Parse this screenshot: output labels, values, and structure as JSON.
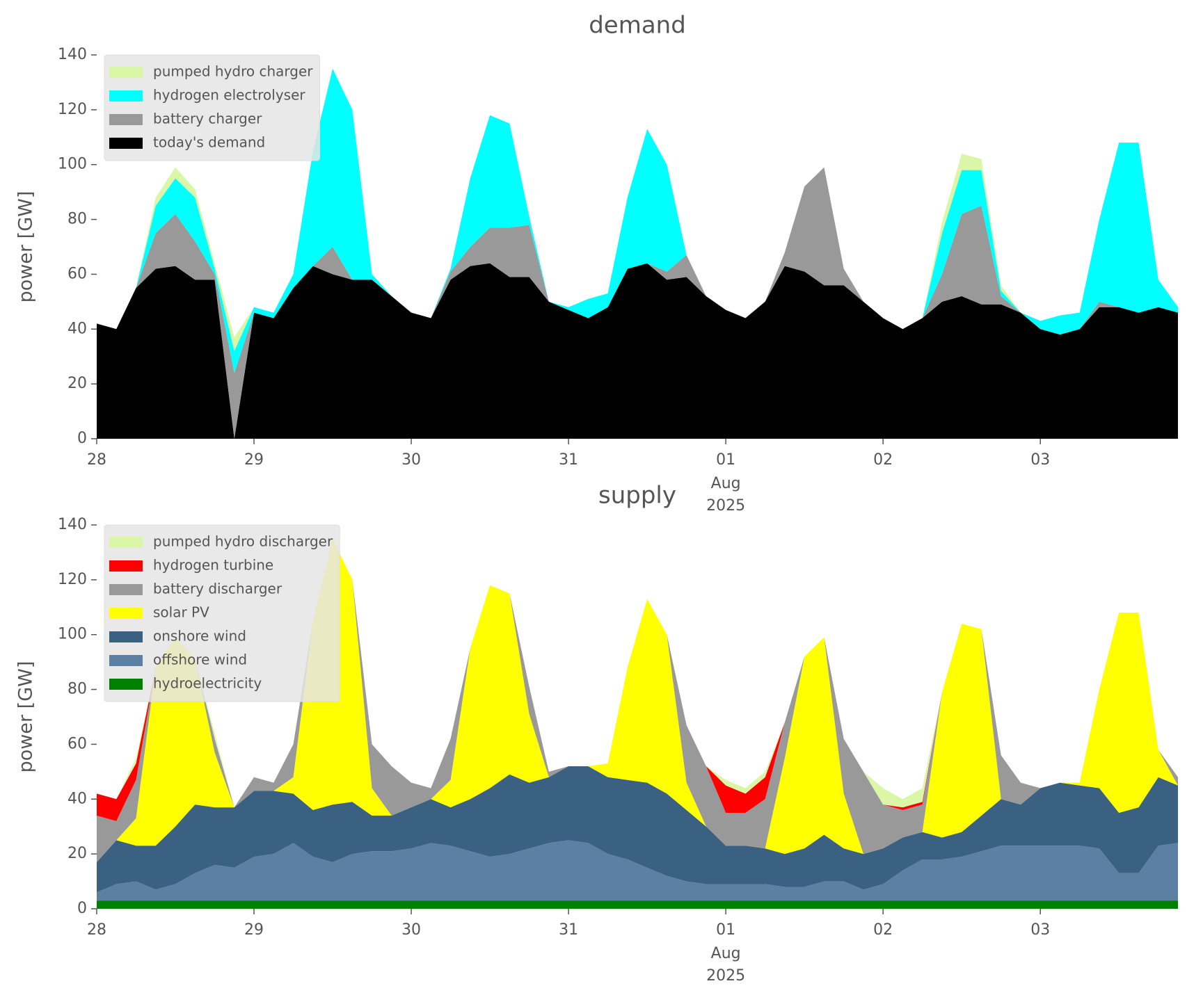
{
  "chart_data": [
    {
      "type": "stacked-area",
      "title": "demand",
      "ylabel": "power [GW]",
      "legend": "upper left",
      "grid": false,
      "x": [
        0,
        0.125,
        0.25,
        0.375,
        0.5,
        0.625,
        0.75,
        0.875,
        1,
        1.125,
        1.25,
        1.375,
        1.5,
        1.625,
        1.75,
        1.875,
        2,
        2.125,
        2.25,
        2.375,
        2.5,
        2.625,
        2.75,
        2.875,
        3,
        3.125,
        3.25,
        3.375,
        3.5,
        3.625,
        3.75,
        3.875,
        4,
        4.125,
        4.25,
        4.375,
        4.5,
        4.625,
        4.75,
        4.875,
        5,
        5.125,
        5.25,
        5.375,
        5.5,
        5.625,
        5.75,
        5.875,
        6,
        6.125,
        6.25,
        6.375,
        6.5,
        6.625,
        6.75,
        6.875
      ],
      "xlim": [
        0,
        6.875
      ],
      "xticks": [
        {
          "value": 0,
          "label": "28"
        },
        {
          "value": 1,
          "label": "29"
        },
        {
          "value": 2,
          "label": "30"
        },
        {
          "value": 3,
          "label": "31"
        },
        {
          "value": 4,
          "label": "01"
        },
        {
          "value": 5,
          "label": "02"
        },
        {
          "value": 6,
          "label": "03"
        }
      ],
      "x_sublabel": [
        "Aug",
        "2025"
      ],
      "ylim": [
        0,
        140
      ],
      "yticks": [
        0,
        20,
        40,
        60,
        80,
        100,
        120,
        140
      ],
      "series": [
        {
          "name": "pumped hydro charger",
          "color": "#d9f7a7",
          "values": [
            0,
            0,
            0,
            3,
            4,
            3,
            2,
            5,
            0,
            0,
            0,
            0,
            0,
            0,
            0,
            0,
            0,
            0,
            0,
            0,
            0,
            0,
            0,
            0,
            0,
            0,
            0,
            0,
            0,
            0,
            0,
            0,
            0,
            0,
            0,
            0,
            0,
            0,
            0,
            0,
            0,
            0,
            0,
            4,
            6,
            4,
            2,
            0,
            0,
            0,
            0,
            0,
            0,
            0,
            0,
            0
          ]
        },
        {
          "name": "hydrogen electrolyser",
          "color": "#00ffff",
          "values": [
            0,
            0,
            0,
            10,
            13,
            16,
            2,
            8,
            2,
            2,
            5,
            42,
            65,
            62,
            2,
            0,
            0,
            0,
            1,
            25,
            41,
            38,
            3,
            0,
            1,
            7,
            5,
            26,
            49,
            39,
            0,
            0,
            0,
            0,
            0,
            0,
            0,
            0,
            0,
            0,
            0,
            0,
            0,
            15,
            16,
            13,
            2,
            0,
            3,
            7,
            6,
            30,
            60,
            62,
            10,
            2
          ]
        },
        {
          "name": "battery charger",
          "color": "#999999",
          "values": [
            0,
            0,
            0,
            13,
            19,
            14,
            2,
            24,
            0,
            0,
            0,
            0,
            10,
            0,
            0,
            0,
            0,
            0,
            3,
            7,
            13,
            18,
            19,
            0,
            0,
            0,
            0,
            0,
            0,
            3,
            8,
            0,
            0,
            0,
            0,
            5,
            31,
            43,
            6,
            0,
            0,
            0,
            0,
            10,
            30,
            36,
            3,
            0,
            0,
            0,
            0,
            2,
            0,
            0,
            0,
            0
          ]
        },
        {
          "name": "today's demand",
          "color": "#000000",
          "values": [
            42,
            40,
            55,
            62,
            63,
            58,
            58,
            0,
            46,
            44,
            55,
            63,
            60,
            58,
            58,
            52,
            46,
            44,
            58,
            63,
            64,
            59,
            59,
            50,
            47,
            44,
            48,
            62,
            64,
            58,
            59,
            52,
            47,
            44,
            50,
            63,
            61,
            56,
            56,
            50,
            44,
            40,
            44,
            50,
            52,
            49,
            49,
            46,
            40,
            38,
            40,
            48,
            48,
            46,
            48,
            46
          ]
        }
      ]
    },
    {
      "type": "stacked-area",
      "title": "supply",
      "ylabel": "power [GW]",
      "legend": "upper left",
      "grid": false,
      "x": [
        0,
        0.125,
        0.25,
        0.375,
        0.5,
        0.625,
        0.75,
        0.875,
        1,
        1.125,
        1.25,
        1.375,
        1.5,
        1.625,
        1.75,
        1.875,
        2,
        2.125,
        2.25,
        2.375,
        2.5,
        2.625,
        2.75,
        2.875,
        3,
        3.125,
        3.25,
        3.375,
        3.5,
        3.625,
        3.75,
        3.875,
        4,
        4.125,
        4.25,
        4.375,
        4.5,
        4.625,
        4.75,
        4.875,
        5,
        5.125,
        5.25,
        5.375,
        5.5,
        5.625,
        5.75,
        5.875,
        6,
        6.125,
        6.25,
        6.375,
        6.5,
        6.625,
        6.75,
        6.875
      ],
      "xlim": [
        0,
        6.875
      ],
      "xticks": [
        {
          "value": 0,
          "label": "28"
        },
        {
          "value": 1,
          "label": "29"
        },
        {
          "value": 2,
          "label": "30"
        },
        {
          "value": 3,
          "label": "31"
        },
        {
          "value": 4,
          "label": "01"
        },
        {
          "value": 5,
          "label": "02"
        },
        {
          "value": 6,
          "label": "03"
        }
      ],
      "x_sublabel": [
        "Aug",
        "2025"
      ],
      "ylim": [
        0,
        140
      ],
      "yticks": [
        0,
        20,
        40,
        60,
        80,
        100,
        120,
        140
      ],
      "series": [
        {
          "name": "pumped hydro discharger",
          "color": "#d9f7a7",
          "values": [
            0,
            0,
            2,
            0,
            0,
            0,
            2,
            0,
            0,
            0,
            0,
            0,
            0,
            0,
            0,
            0,
            0,
            0,
            0,
            0,
            0,
            0,
            0,
            0,
            0,
            0,
            0,
            0,
            0,
            0,
            0,
            0,
            2,
            2,
            2,
            0,
            0,
            0,
            0,
            0,
            6,
            3,
            5,
            0,
            0,
            0,
            0,
            0,
            0,
            0,
            0,
            0,
            0,
            0,
            0,
            0
          ]
        },
        {
          "name": "hydrogen turbine",
          "color": "#ff0000",
          "values": [
            8,
            8,
            6,
            0,
            0,
            0,
            0,
            0,
            0,
            0,
            0,
            0,
            0,
            0,
            0,
            0,
            0,
            0,
            0,
            0,
            0,
            0,
            0,
            0,
            0,
            0,
            0,
            0,
            0,
            0,
            0,
            0,
            10,
            7,
            8,
            0,
            0,
            0,
            0,
            0,
            0,
            1,
            1,
            0,
            0,
            0,
            0,
            0,
            0,
            0,
            0,
            0,
            0,
            0,
            0,
            0
          ]
        },
        {
          "name": "battery discharger",
          "color": "#999999",
          "values": [
            17,
            7,
            14,
            0,
            0,
            0,
            5,
            0,
            5,
            3,
            12,
            0,
            0,
            0,
            16,
            18,
            9,
            4,
            15,
            0,
            0,
            0,
            10,
            2,
            0,
            0,
            0,
            0,
            0,
            0,
            21,
            22,
            12,
            12,
            18,
            13,
            0,
            0,
            20,
            30,
            16,
            10,
            10,
            0,
            0,
            0,
            16,
            8,
            0,
            0,
            0,
            0,
            0,
            0,
            0,
            3
          ]
        },
        {
          "name": "solar PV",
          "color": "#ffff00",
          "values": [
            0,
            0,
            10,
            65,
            69,
            53,
            20,
            0,
            0,
            0,
            6,
            69,
            97,
            81,
            10,
            0,
            0,
            0,
            10,
            55,
            74,
            66,
            25,
            0,
            0,
            0,
            5,
            41,
            67,
            58,
            10,
            0,
            0,
            0,
            0,
            35,
            70,
            72,
            20,
            0,
            0,
            0,
            0,
            53,
            76,
            68,
            0,
            0,
            0,
            0,
            1,
            36,
            73,
            71,
            10,
            0
          ]
        },
        {
          "name": "onshore wind",
          "color": "#3b6182",
          "values": [
            11,
            16,
            13,
            16,
            21,
            25,
            21,
            22,
            24,
            23,
            18,
            17,
            21,
            19,
            13,
            13,
            15,
            16,
            14,
            19,
            25,
            29,
            24,
            24,
            27,
            28,
            28,
            29,
            31,
            30,
            26,
            21,
            14,
            14,
            13,
            12,
            14,
            17,
            12,
            13,
            13,
            12,
            10,
            8,
            9,
            13,
            17,
            15,
            21,
            23,
            22,
            22,
            22,
            24,
            25,
            21
          ]
        },
        {
          "name": "offshore wind",
          "color": "#5b80a3",
          "values": [
            3,
            6,
            7,
            4,
            6,
            10,
            13,
            12,
            16,
            17,
            21,
            16,
            14,
            17,
            18,
            18,
            19,
            21,
            20,
            18,
            16,
            17,
            19,
            21,
            22,
            21,
            17,
            15,
            12,
            9,
            7,
            6,
            6,
            6,
            6,
            5,
            5,
            7,
            7,
            4,
            6,
            11,
            15,
            15,
            16,
            18,
            20,
            20,
            20,
            20,
            20,
            19,
            10,
            10,
            20,
            21
          ]
        },
        {
          "name": "hydroelectricity",
          "color": "#008000",
          "values": [
            3,
            3,
            3,
            3,
            3,
            3,
            3,
            3,
            3,
            3,
            3,
            3,
            3,
            3,
            3,
            3,
            3,
            3,
            3,
            3,
            3,
            3,
            3,
            3,
            3,
            3,
            3,
            3,
            3,
            3,
            3,
            3,
            3,
            3,
            3,
            3,
            3,
            3,
            3,
            3,
            3,
            3,
            3,
            3,
            3,
            3,
            3,
            3,
            3,
            3,
            3,
            3,
            3,
            3,
            3,
            3
          ]
        }
      ]
    }
  ]
}
